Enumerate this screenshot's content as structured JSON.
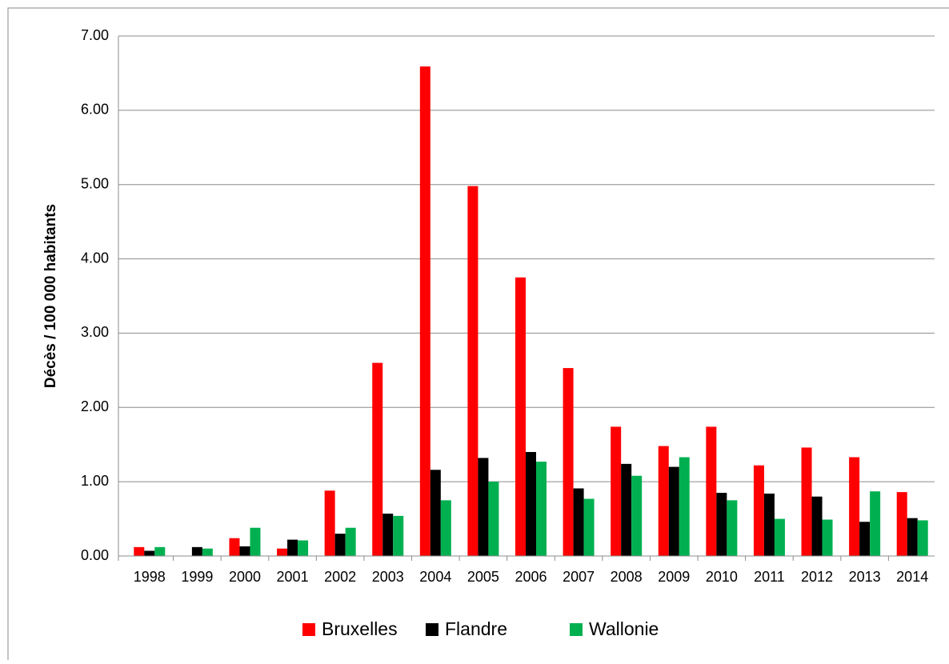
{
  "chart_data": {
    "type": "bar",
    "y_label": "Décès / 100 000 habitants",
    "categories": [
      "1998",
      "1999",
      "2000",
      "2001",
      "2002",
      "2003",
      "2004",
      "2005",
      "2006",
      "2007",
      "2008",
      "2009",
      "2010",
      "2011",
      "2012",
      "2013",
      "2014"
    ],
    "series": [
      {
        "name": "Bruxelles",
        "color": "#ff0000",
        "values": [
          0.12,
          0,
          0.24,
          0.1,
          0.88,
          2.6,
          6.59,
          4.98,
          3.75,
          2.53,
          1.74,
          1.48,
          1.74,
          1.22,
          1.46,
          1.33,
          0.86
        ]
      },
      {
        "name": "Flandre",
        "color": "#000000",
        "values": [
          0.07,
          0.12,
          0.13,
          0.22,
          0.3,
          0.57,
          1.16,
          1.32,
          1.4,
          0.91,
          1.24,
          1.2,
          0.85,
          0.84,
          0.8,
          0.46,
          0.51
        ]
      },
      {
        "name": "Wallonie",
        "color": "#00b050",
        "values": [
          0.12,
          0.1,
          0.38,
          0.21,
          0.38,
          0.54,
          0.75,
          1.0,
          1.27,
          0.77,
          1.08,
          1.33,
          0.75,
          0.5,
          0.49,
          0.87,
          0.48
        ]
      }
    ],
    "ylim": [
      0,
      7
    ],
    "yticks": [
      {
        "value": 0,
        "label": "0.00"
      },
      {
        "value": 1,
        "label": "1.00"
      },
      {
        "value": 2,
        "label": "2.00"
      },
      {
        "value": 3,
        "label": "3.00"
      },
      {
        "value": 4,
        "label": "4.00"
      },
      {
        "value": 5,
        "label": "5.00"
      },
      {
        "value": 6,
        "label": "6.00"
      },
      {
        "value": 7,
        "label": "7.00"
      }
    ],
    "grid": true,
    "legend": "bottom"
  }
}
